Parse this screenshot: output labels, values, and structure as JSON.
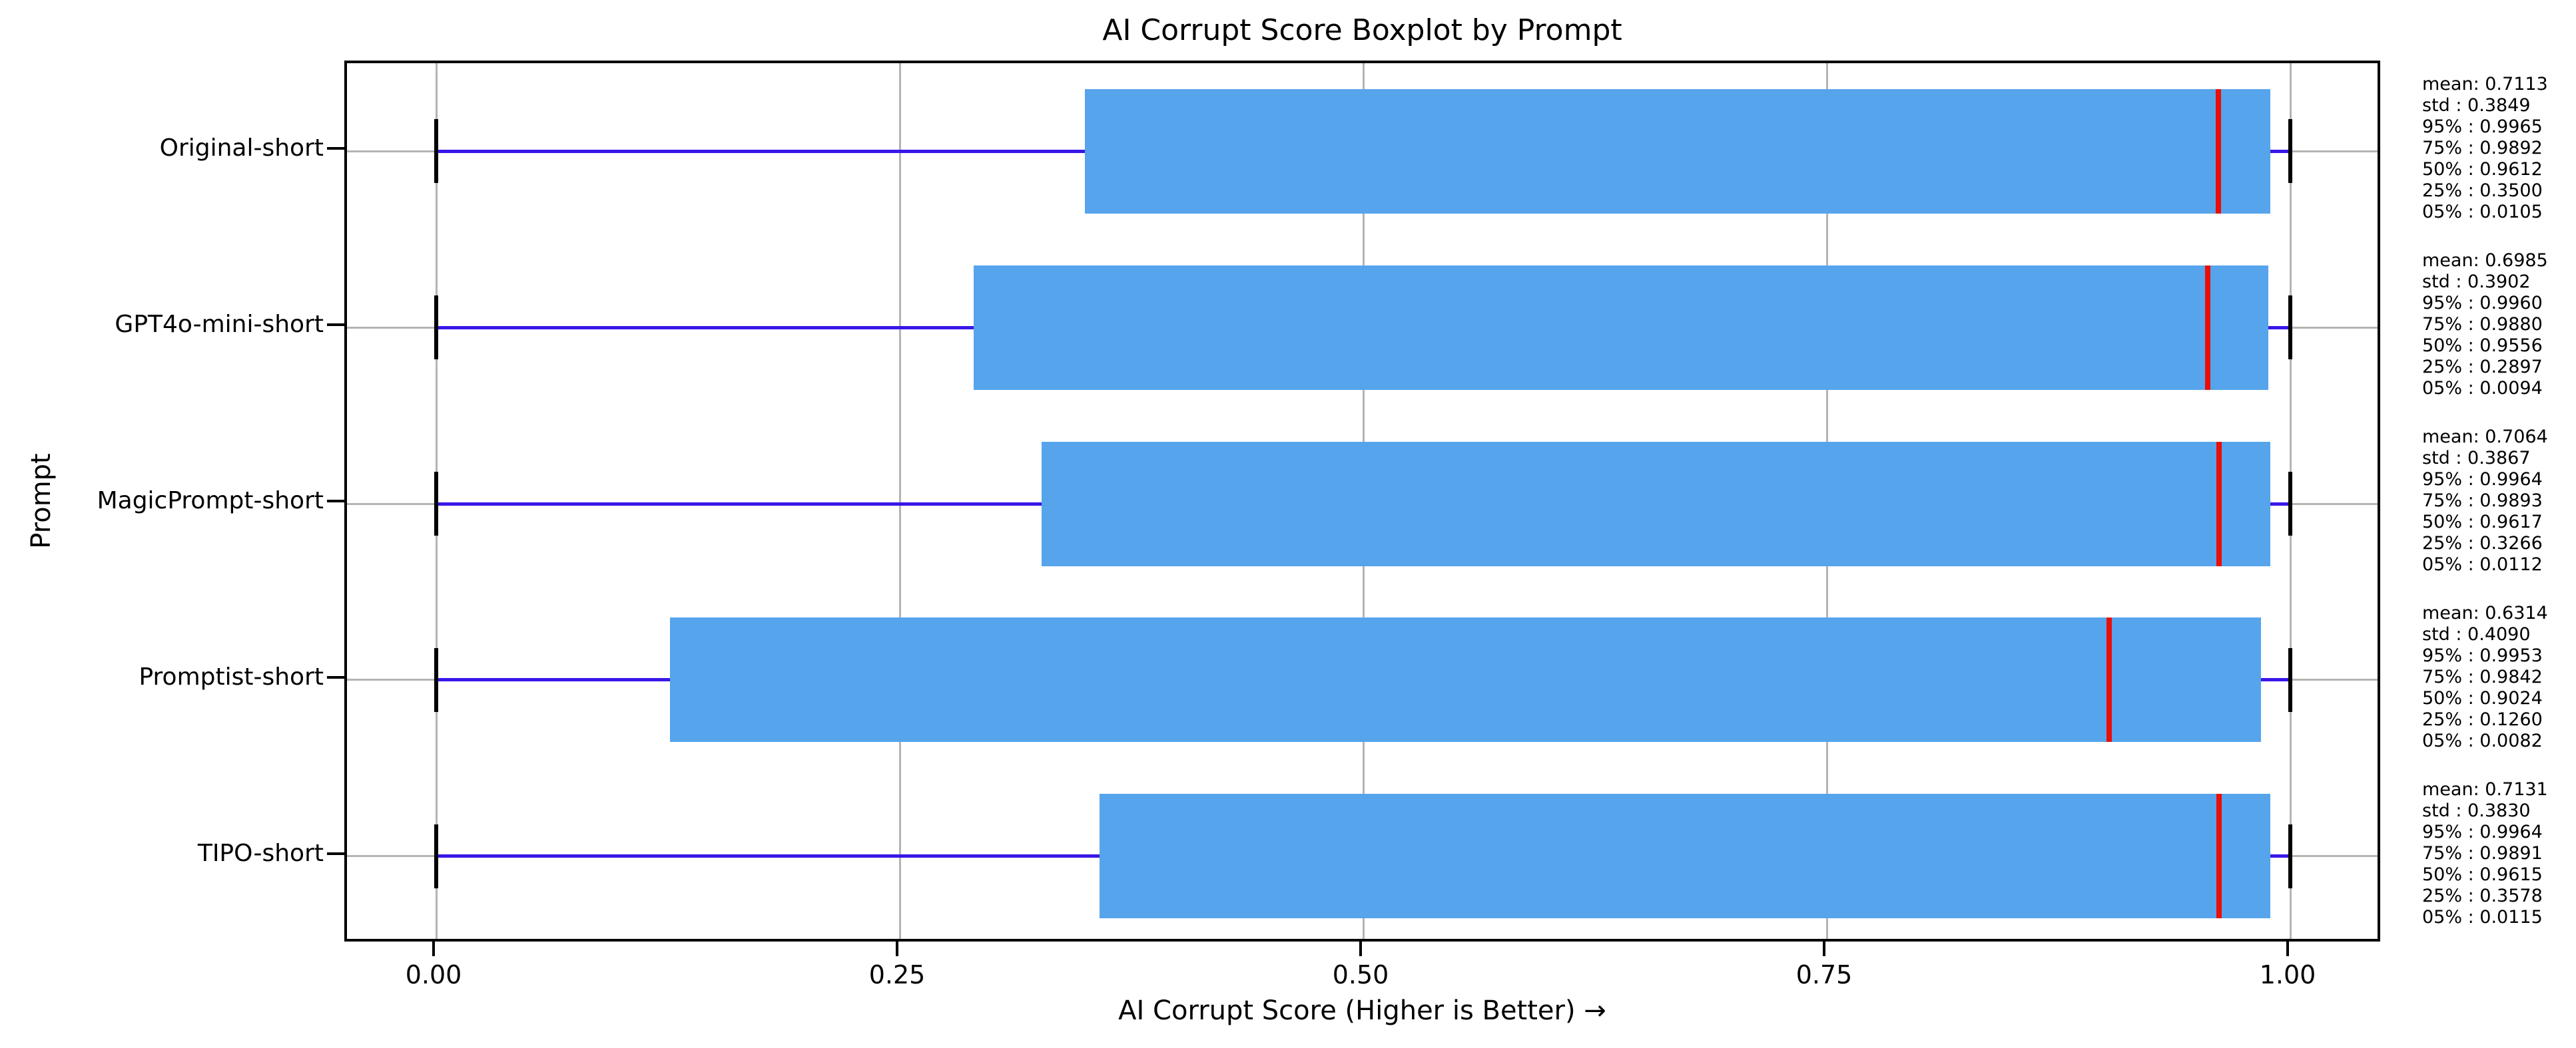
{
  "chart_data": {
    "type": "box",
    "orientation": "horizontal",
    "title": "AI Corrupt Score Boxplot by Prompt",
    "xlabel": "AI Corrupt Score (Higher is Better) →",
    "ylabel": "Prompt",
    "grid": true,
    "legend": "none",
    "xlim": [
      -0.048,
      1.05
    ],
    "x_ticks": [
      {
        "value": 0.0,
        "label": "0.00"
      },
      {
        "value": 0.25,
        "label": "0.25"
      },
      {
        "value": 0.5,
        "label": "0.50"
      },
      {
        "value": 0.75,
        "label": "0.75"
      },
      {
        "value": 1.0,
        "label": "1.00"
      }
    ],
    "categories": [
      "Original-short",
      "GPT4o-mini-short",
      "MagicPrompt-short",
      "Promptist-short",
      "TIPO-short"
    ],
    "whisker_low": 0.0,
    "whisker_high": 1.0,
    "stat_rows": [
      [
        "mean",
        "mean:"
      ],
      [
        "std",
        "std :"
      ],
      [
        "p95",
        "95% :"
      ],
      [
        "p75",
        "75% :"
      ],
      [
        "p50",
        "50% :"
      ],
      [
        "p25",
        "25% :"
      ],
      [
        "p05",
        "05% :"
      ]
    ],
    "series": [
      {
        "category": "Original-short",
        "mean": 0.7113,
        "std": 0.3849,
        "p95": 0.9965,
        "p75": 0.9892,
        "p50": 0.9612,
        "p25": 0.35,
        "p05": 0.0105
      },
      {
        "category": "GPT4o-mini-short",
        "mean": 0.6985,
        "std": 0.3902,
        "p95": 0.996,
        "p75": 0.988,
        "p50": 0.9556,
        "p25": 0.2897,
        "p05": 0.0094
      },
      {
        "category": "MagicPrompt-short",
        "mean": 0.7064,
        "std": 0.3867,
        "p95": 0.9964,
        "p75": 0.9893,
        "p50": 0.9617,
        "p25": 0.3266,
        "p05": 0.0112
      },
      {
        "category": "Promptist-short",
        "mean": 0.6314,
        "std": 0.409,
        "p95": 0.9953,
        "p75": 0.9842,
        "p50": 0.9024,
        "p25": 0.126,
        "p05": 0.0082
      },
      {
        "category": "TIPO-short",
        "mean": 0.7131,
        "std": 0.383,
        "p95": 0.9964,
        "p75": 0.9891,
        "p50": 0.9615,
        "p25": 0.3578,
        "p05": 0.0115
      }
    ],
    "colors": {
      "box_fill": "#55a4ec",
      "median": "#ea0e08",
      "whisker": "#3a16e8",
      "cap": "#000000",
      "grid": "#b4b4b4",
      "spine": "#000000",
      "text": "#000000",
      "background": "#ffffff"
    }
  }
}
